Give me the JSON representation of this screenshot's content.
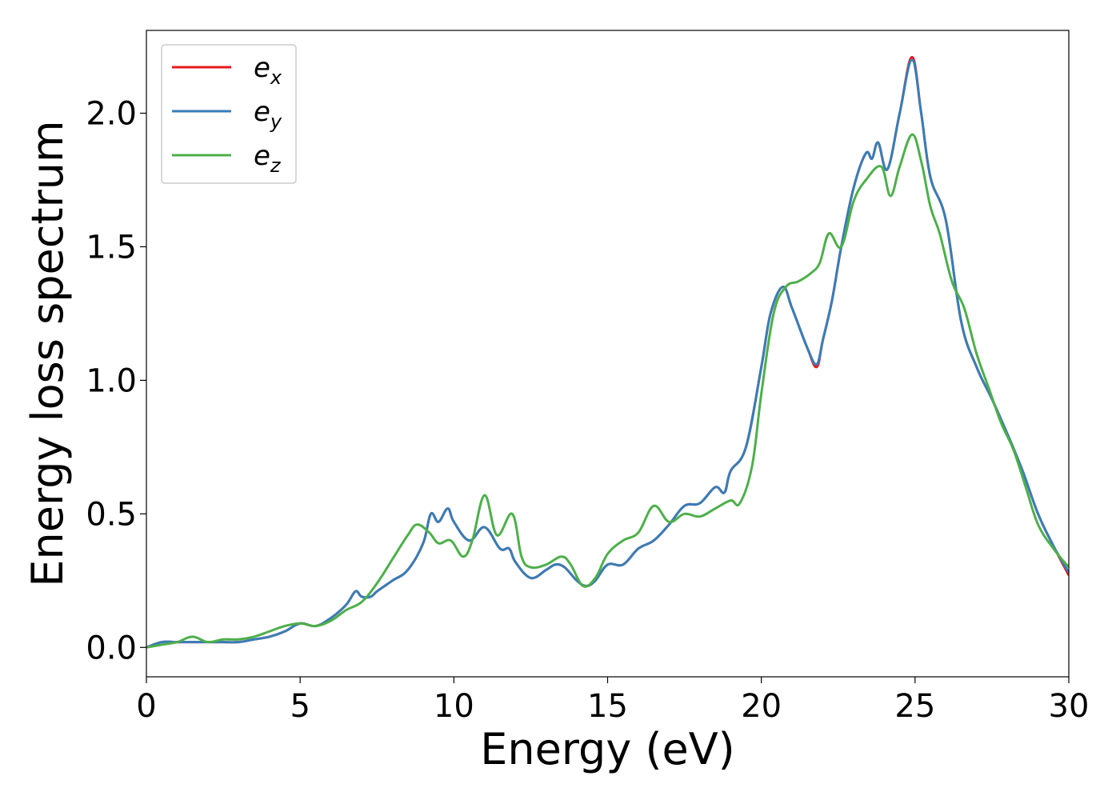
{
  "chart_data": {
    "type": "line",
    "xlabel": "Energy (eV)",
    "ylabel": "Energy loss spectrum",
    "xlim": [
      0,
      30
    ],
    "ylim": [
      -0.11,
      2.31
    ],
    "xticks": [
      0,
      5,
      10,
      15,
      20,
      25,
      30
    ],
    "xtick_labels": [
      "0",
      "5",
      "10",
      "15",
      "20",
      "25",
      "30"
    ],
    "yticks": [
      0.0,
      0.5,
      1.0,
      1.5,
      2.0
    ],
    "ytick_labels": [
      "0.0",
      "0.5",
      "1.0",
      "1.5",
      "2.0"
    ],
    "grid": false,
    "legend_position": "upper-left",
    "series": [
      {
        "name": "e",
        "subscript": "x",
        "color": "#e41a1c",
        "x": [
          0,
          0.5,
          1.0,
          1.5,
          2.0,
          2.5,
          3.0,
          3.5,
          4.0,
          4.5,
          5.0,
          5.5,
          6.0,
          6.5,
          6.8,
          7.0,
          7.3,
          7.5,
          8.0,
          8.5,
          9.0,
          9.25,
          9.5,
          9.8,
          10.0,
          10.5,
          11.0,
          11.5,
          11.8,
          12.0,
          12.5,
          13.0,
          13.3,
          13.6,
          14.0,
          14.3,
          14.6,
          15.0,
          15.5,
          16.0,
          16.5,
          17.0,
          17.5,
          18.0,
          18.5,
          18.8,
          19.0,
          19.5,
          20.0,
          20.3,
          20.7,
          21.0,
          21.5,
          21.8,
          22.0,
          22.3,
          22.6,
          23.0,
          23.4,
          23.6,
          23.8,
          24.1,
          24.5,
          24.9,
          25.2,
          25.5,
          26.0,
          26.5,
          27.0,
          27.5,
          28.0,
          28.5,
          29.0,
          29.5,
          30.0
        ],
        "y": [
          0.0,
          0.02,
          0.02,
          0.02,
          0.02,
          0.02,
          0.02,
          0.03,
          0.04,
          0.06,
          0.09,
          0.08,
          0.11,
          0.16,
          0.21,
          0.19,
          0.19,
          0.21,
          0.25,
          0.29,
          0.39,
          0.5,
          0.47,
          0.52,
          0.47,
          0.4,
          0.45,
          0.37,
          0.37,
          0.32,
          0.26,
          0.29,
          0.31,
          0.3,
          0.25,
          0.23,
          0.25,
          0.31,
          0.31,
          0.37,
          0.4,
          0.46,
          0.53,
          0.54,
          0.6,
          0.58,
          0.66,
          0.75,
          1.05,
          1.25,
          1.35,
          1.27,
          1.12,
          1.05,
          1.15,
          1.3,
          1.5,
          1.72,
          1.85,
          1.83,
          1.89,
          1.79,
          2.0,
          2.21,
          2.0,
          1.76,
          1.6,
          1.22,
          1.05,
          0.93,
          0.8,
          0.66,
          0.5,
          0.38,
          0.27
        ]
      },
      {
        "name": "e",
        "subscript": "y",
        "color": "#377eb8",
        "x": [
          0,
          0.5,
          1.0,
          1.5,
          2.0,
          2.5,
          3.0,
          3.5,
          4.0,
          4.5,
          5.0,
          5.5,
          6.0,
          6.5,
          6.8,
          7.0,
          7.3,
          7.5,
          8.0,
          8.5,
          9.0,
          9.25,
          9.5,
          9.8,
          10.0,
          10.5,
          11.0,
          11.5,
          11.8,
          12.0,
          12.5,
          13.0,
          13.3,
          13.6,
          14.0,
          14.3,
          14.6,
          15.0,
          15.5,
          16.0,
          16.5,
          17.0,
          17.5,
          18.0,
          18.5,
          18.8,
          19.0,
          19.5,
          20.0,
          20.3,
          20.7,
          21.0,
          21.5,
          21.8,
          22.0,
          22.3,
          22.6,
          23.0,
          23.4,
          23.6,
          23.8,
          24.1,
          24.5,
          24.9,
          25.2,
          25.5,
          26.0,
          26.5,
          27.0,
          27.5,
          28.0,
          28.5,
          29.0,
          29.5,
          30.0
        ],
        "y": [
          0.0,
          0.02,
          0.02,
          0.02,
          0.02,
          0.02,
          0.02,
          0.03,
          0.04,
          0.06,
          0.09,
          0.08,
          0.11,
          0.16,
          0.21,
          0.19,
          0.19,
          0.21,
          0.25,
          0.29,
          0.39,
          0.5,
          0.47,
          0.52,
          0.47,
          0.4,
          0.45,
          0.37,
          0.37,
          0.32,
          0.26,
          0.29,
          0.31,
          0.3,
          0.25,
          0.23,
          0.25,
          0.31,
          0.31,
          0.37,
          0.4,
          0.46,
          0.53,
          0.54,
          0.6,
          0.58,
          0.66,
          0.75,
          1.05,
          1.25,
          1.35,
          1.27,
          1.12,
          1.06,
          1.15,
          1.3,
          1.5,
          1.72,
          1.85,
          1.83,
          1.89,
          1.79,
          2.0,
          2.2,
          2.0,
          1.76,
          1.6,
          1.22,
          1.05,
          0.93,
          0.8,
          0.66,
          0.5,
          0.38,
          0.28
        ]
      },
      {
        "name": "e",
        "subscript": "z",
        "color": "#4daf4a",
        "x": [
          0,
          0.5,
          1.0,
          1.5,
          2.0,
          2.5,
          3.0,
          3.5,
          4.0,
          4.5,
          5.0,
          5.5,
          6.0,
          6.5,
          7.0,
          7.5,
          8.0,
          8.5,
          8.8,
          9.2,
          9.5,
          9.9,
          10.3,
          10.6,
          11.0,
          11.4,
          11.9,
          12.2,
          12.5,
          13.0,
          13.5,
          13.8,
          14.2,
          14.6,
          15.0,
          15.5,
          16.0,
          16.5,
          17.0,
          17.5,
          18.0,
          18.5,
          19.0,
          19.3,
          19.7,
          20.0,
          20.4,
          20.8,
          21.2,
          21.6,
          21.9,
          22.2,
          22.6,
          23.0,
          23.4,
          23.9,
          24.2,
          24.5,
          24.9,
          25.2,
          25.5,
          25.8,
          26.2,
          26.6,
          27.0,
          27.4,
          27.8,
          28.2,
          28.6,
          29.0,
          29.5,
          30.0
        ],
        "y": [
          0.0,
          0.01,
          0.02,
          0.04,
          0.02,
          0.03,
          0.03,
          0.04,
          0.06,
          0.08,
          0.09,
          0.08,
          0.1,
          0.14,
          0.17,
          0.24,
          0.33,
          0.42,
          0.46,
          0.43,
          0.39,
          0.4,
          0.34,
          0.4,
          0.57,
          0.42,
          0.5,
          0.34,
          0.3,
          0.31,
          0.34,
          0.31,
          0.23,
          0.26,
          0.35,
          0.4,
          0.43,
          0.53,
          0.47,
          0.5,
          0.49,
          0.52,
          0.55,
          0.54,
          0.68,
          0.95,
          1.25,
          1.35,
          1.37,
          1.4,
          1.44,
          1.55,
          1.5,
          1.67,
          1.75,
          1.8,
          1.69,
          1.8,
          1.92,
          1.82,
          1.65,
          1.55,
          1.37,
          1.27,
          1.1,
          0.97,
          0.84,
          0.74,
          0.6,
          0.46,
          0.37,
          0.3
        ]
      }
    ]
  }
}
